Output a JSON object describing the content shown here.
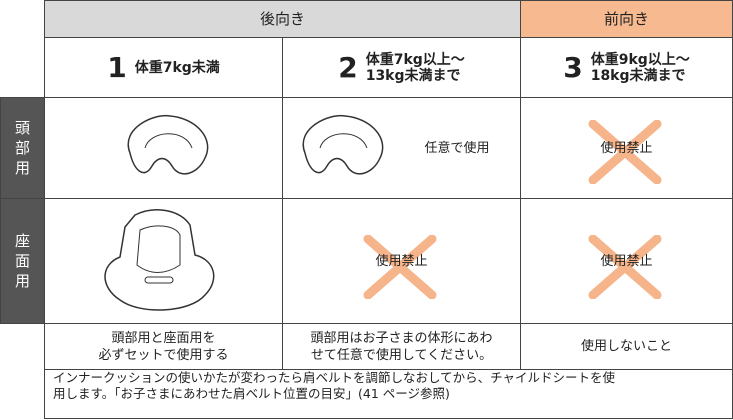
{
  "header": {
    "rear": "後向き",
    "front": "前向き"
  },
  "columns": [
    {
      "number": "1",
      "weight_lines": [
        "体重7kg未満"
      ]
    },
    {
      "number": "2",
      "weight_lines": [
        "体重7kg以上〜",
        "13kg未満まで"
      ]
    },
    {
      "number": "3",
      "weight_lines": [
        "体重9kg以上〜",
        "18kg未満まで"
      ]
    }
  ],
  "rows": [
    {
      "label": "頭部用",
      "cells": [
        null,
        "任意で使用",
        "使用禁止"
      ]
    },
    {
      "label": "座面用",
      "cells": [
        null,
        "使用禁止",
        "使用禁止"
      ]
    }
  ],
  "notes": [
    [
      "頭部用と座面用を",
      "必ずセットで使用する"
    ],
    [
      "頭部用はお子さまの体形にあわ",
      "せて任意で使用してください。"
    ],
    [
      "使用しないこと"
    ]
  ],
  "footnote": [
    "インナークッションの使いかたが変わったら肩ベルトを調節しなおしてから、チャイルドシートを使",
    "用します。「お子さまにあわせた肩ベルト位置の目安」(41 ページ参照)"
  ]
}
